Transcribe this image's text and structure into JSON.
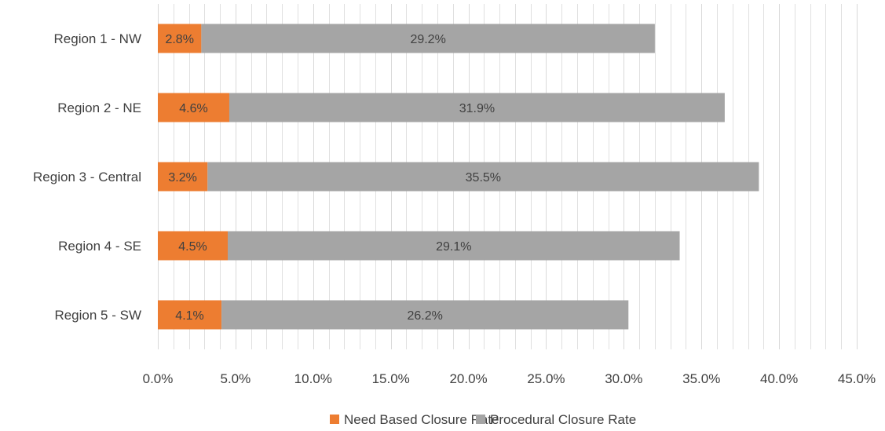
{
  "chart_data": {
    "type": "bar",
    "orientation": "horizontal",
    "stacked": true,
    "categories": [
      "Region 1 - NW",
      "Region 2 - NE",
      "Region 3 - Central",
      "Region 4 - SE",
      "Region 5 - SW"
    ],
    "series": [
      {
        "name": "Need Based Closure Rate",
        "values": [
          2.8,
          4.6,
          3.2,
          4.5,
          4.1
        ],
        "labels": [
          "2.8%",
          "4.6%",
          "3.2%",
          "4.5%",
          "4.1%"
        ],
        "color": "#ED7D31"
      },
      {
        "name": "Procedural Closure Rate",
        "values": [
          29.2,
          31.9,
          35.5,
          29.1,
          26.2
        ],
        "labels": [
          "29.2%",
          "31.9%",
          "35.5%",
          "29.1%",
          "26.2%"
        ],
        "color": "#A5A5A5"
      }
    ],
    "xlim": [
      0,
      45
    ],
    "x_ticks": [
      0,
      5,
      10,
      15,
      20,
      25,
      30,
      35,
      40,
      45
    ],
    "x_tick_labels": [
      "0.0%",
      "5.0%",
      "10.0%",
      "15.0%",
      "20.0%",
      "25.0%",
      "30.0%",
      "35.0%",
      "40.0%",
      "45.0%"
    ],
    "minor_grid_step": 1,
    "grid": true,
    "legend_position": "bottom",
    "gridline_color": "#D9D9D9",
    "text_color": "#404040"
  }
}
